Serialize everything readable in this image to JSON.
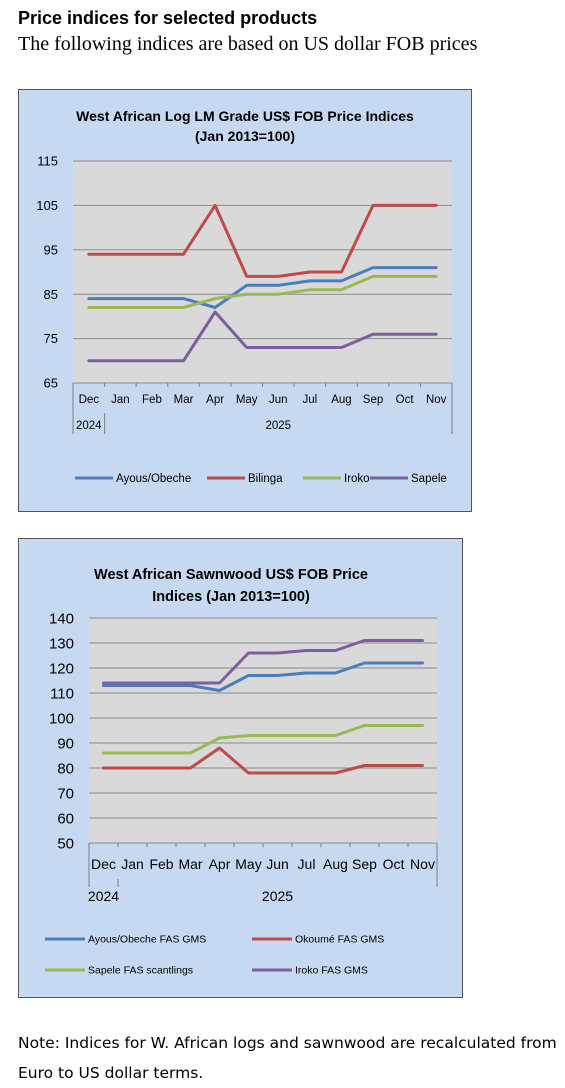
{
  "page": {
    "heading": "Price indices for selected products",
    "subheading": "The following indices are based on US dollar FOB prices",
    "note": "Note: Indices for W. African logs and sawnwood are recalculated from Euro to US dollar terms."
  },
  "chart_data": [
    {
      "type": "line",
      "title_lines": [
        "West African Log LM Grade US$ FOB Price Indices",
        "(Jan 2013=100)"
      ],
      "categories": [
        "Dec",
        "Jan",
        "Feb",
        "Mar",
        "Apr",
        "May",
        "Jun",
        "Jul",
        "Aug",
        "Sep",
        "Oct",
        "Nov"
      ],
      "year_labels": [
        "2024",
        "2025"
      ],
      "ylim": [
        65,
        115
      ],
      "yticks": [
        65,
        75,
        85,
        95,
        105,
        115
      ],
      "grid": true,
      "legend_position": "bottom",
      "series": [
        {
          "name": "Ayous/Obeche",
          "color": "#4a7ebb",
          "values": [
            84,
            84,
            84,
            84,
            82,
            87,
            87,
            88,
            88,
            91,
            91,
            91
          ]
        },
        {
          "name": "Bilinga",
          "color": "#be4b48",
          "values": [
            94,
            94,
            94,
            94,
            105,
            89,
            89,
            90,
            90,
            105,
            105,
            105
          ]
        },
        {
          "name": "Iroko",
          "color": "#98b954",
          "values": [
            82,
            82,
            82,
            82,
            84,
            85,
            85,
            86,
            86,
            89,
            89,
            89
          ]
        },
        {
          "name": "Sapele",
          "color": "#7d5fa0",
          "values": [
            70,
            70,
            70,
            70,
            81,
            73,
            73,
            73,
            73,
            76,
            76,
            76
          ]
        }
      ]
    },
    {
      "type": "line",
      "title_lines": [
        "West African Sawnwood US$ FOB Price",
        "Indices (Jan 2013=100)"
      ],
      "categories": [
        "Dec",
        "Jan",
        "Feb",
        "Mar",
        "Apr",
        "May",
        "Jun",
        "Jul",
        "Aug",
        "Sep",
        "Oct",
        "Nov"
      ],
      "year_labels": [
        "2024",
        "2025"
      ],
      "ylim": [
        50,
        140
      ],
      "yticks": [
        50,
        60,
        70,
        80,
        90,
        100,
        110,
        120,
        130,
        140
      ],
      "grid": true,
      "legend_position": "bottom",
      "series": [
        {
          "name": "Ayous/Obeche  FAS GMS",
          "color": "#4a7ebb",
          "values": [
            113,
            113,
            113,
            113,
            111,
            117,
            117,
            118,
            118,
            122,
            122,
            122
          ]
        },
        {
          "name": "Okoumé  FAS GMS",
          "color": "#be4b48",
          "values": [
            80,
            80,
            80,
            80,
            88,
            78,
            78,
            78,
            78,
            81,
            81,
            81
          ]
        },
        {
          "name": "Sapele FAS scantlings",
          "color": "#98b954",
          "values": [
            86,
            86,
            86,
            86,
            92,
            93,
            93,
            93,
            93,
            97,
            97,
            97
          ]
        },
        {
          "name": "Iroko FAS GMS",
          "color": "#7d5fa0",
          "values": [
            114,
            114,
            114,
            114,
            114,
            126,
            126,
            127,
            127,
            131,
            131,
            131
          ]
        }
      ]
    }
  ]
}
